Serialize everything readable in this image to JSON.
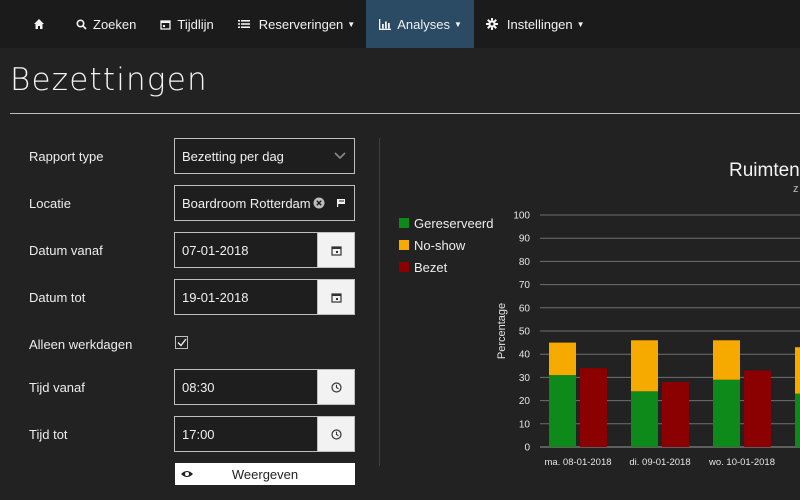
{
  "nav": {
    "home_icon": "home-icon",
    "items": [
      {
        "label": "Zoeken",
        "icon": "search-icon"
      },
      {
        "label": "Tijdlijn",
        "icon": "calendar-icon"
      },
      {
        "label": "Reserveringen",
        "icon": "list-icon",
        "dropdown": true
      },
      {
        "label": "Analyses",
        "icon": "bar-chart-icon",
        "dropdown": true,
        "active": true
      },
      {
        "label": "Instellingen",
        "icon": "gear-icon",
        "dropdown": true
      }
    ]
  },
  "page": {
    "title": "Bezettingen"
  },
  "form": {
    "rapport_type": {
      "label": "Rapport type",
      "value": "Bezetting per dag"
    },
    "locatie": {
      "label": "Locatie",
      "value": "Boardroom Rotterdam"
    },
    "datum_vanaf": {
      "label": "Datum vanaf",
      "value": "07-01-2018"
    },
    "datum_tot": {
      "label": "Datum tot",
      "value": "19-01-2018"
    },
    "werkdagen": {
      "label": "Alleen werkdagen",
      "checked": true
    },
    "tijd_vanaf": {
      "label": "Tijd vanaf",
      "value": "08:30"
    },
    "tijd_tot": {
      "label": "Tijd tot",
      "value": "17:00"
    },
    "show_button": "Weergeven"
  },
  "colors": {
    "gereserveerd": "#0e8a1a",
    "noshow": "#f6aa00",
    "bezet": "#8b0000",
    "nav_active": "#2b4a63"
  },
  "chart_data": {
    "type": "bar",
    "title": "Ruimten",
    "subtitle": "z",
    "ylabel": "Percentage",
    "ylim": [
      0,
      100
    ],
    "yticks": [
      0,
      10,
      20,
      30,
      40,
      50,
      60,
      70,
      80,
      90,
      100
    ],
    "grid": true,
    "legend_position": "left",
    "legend": [
      "Gereserveerd",
      "No-show",
      "Bezet"
    ],
    "categories": [
      "ma. 08-01-2018",
      "di. 09-01-2018",
      "wo. 10-01-2018",
      "d"
    ],
    "series": [
      {
        "name": "Gereserveerd",
        "stack": "a",
        "values": [
          31,
          24,
          29,
          23
        ]
      },
      {
        "name": "No-show",
        "stack": "a",
        "values": [
          14,
          22,
          17,
          20
        ]
      },
      {
        "name": "Bezet",
        "stack": "b",
        "values": [
          34,
          28,
          33,
          null
        ]
      }
    ]
  }
}
